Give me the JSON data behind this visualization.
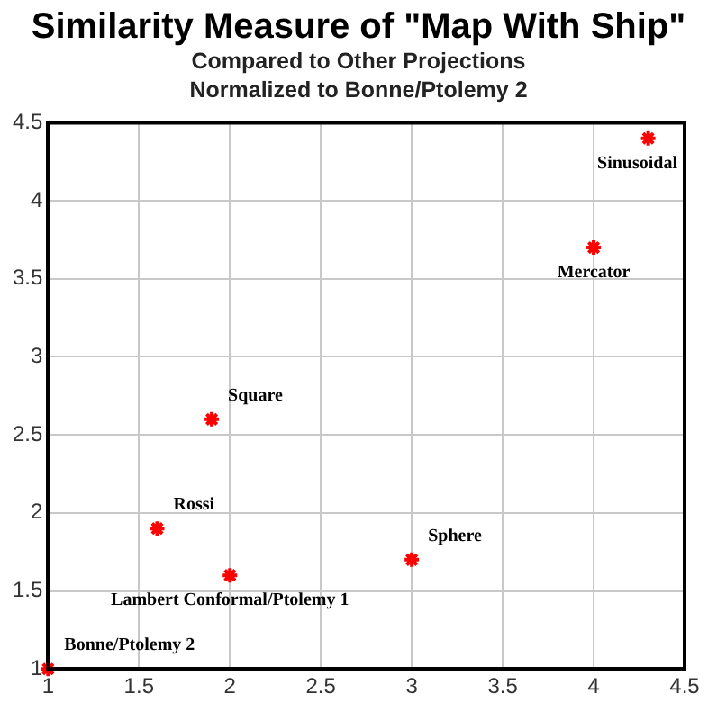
{
  "chart_data": {
    "type": "scatter",
    "title": "Similarity Measure of  \"Map With Ship\"",
    "subtitle": "Compared to Other Projections\nNormalized to Bonne/Ptolemy 2",
    "x": [
      1,
      1.6,
      1.9,
      2,
      3,
      4,
      4.3
    ],
    "series": [
      {
        "color": "#ff0000",
        "values": [
          1,
          1.9,
          2.6,
          1.6,
          1.7,
          3.7,
          4.4
        ]
      }
    ],
    "xlim": [
      1,
      4.5
    ],
    "xticks": [
      1,
      1.5,
      2,
      2.5,
      3,
      3.5,
      4,
      4.5
    ],
    "ylim": [
      1,
      4.5
    ],
    "yticks": [
      1,
      1.5,
      2,
      2.5,
      3,
      3.5,
      4,
      4.5
    ],
    "grid": true,
    "legend": false,
    "marker": "cross",
    "annotations": [
      {
        "text": "Bonne/Ptolemy 2",
        "x": 1,
        "y": 1
      },
      {
        "text": "Rossi",
        "x": 1.6,
        "y": 1.9
      },
      {
        "text": "Square",
        "x": 1.9,
        "y": 2.6
      },
      {
        "text": "Lambert Conformal/Ptolemy 1",
        "x": 2,
        "y": 1.6
      },
      {
        "text": "Sphere",
        "x": 3,
        "y": 1.7
      },
      {
        "text": "Mercator",
        "x": 4,
        "y": 3.7
      },
      {
        "text": "Sinusoidal",
        "x": 4.3,
        "y": 4.4
      }
    ]
  }
}
